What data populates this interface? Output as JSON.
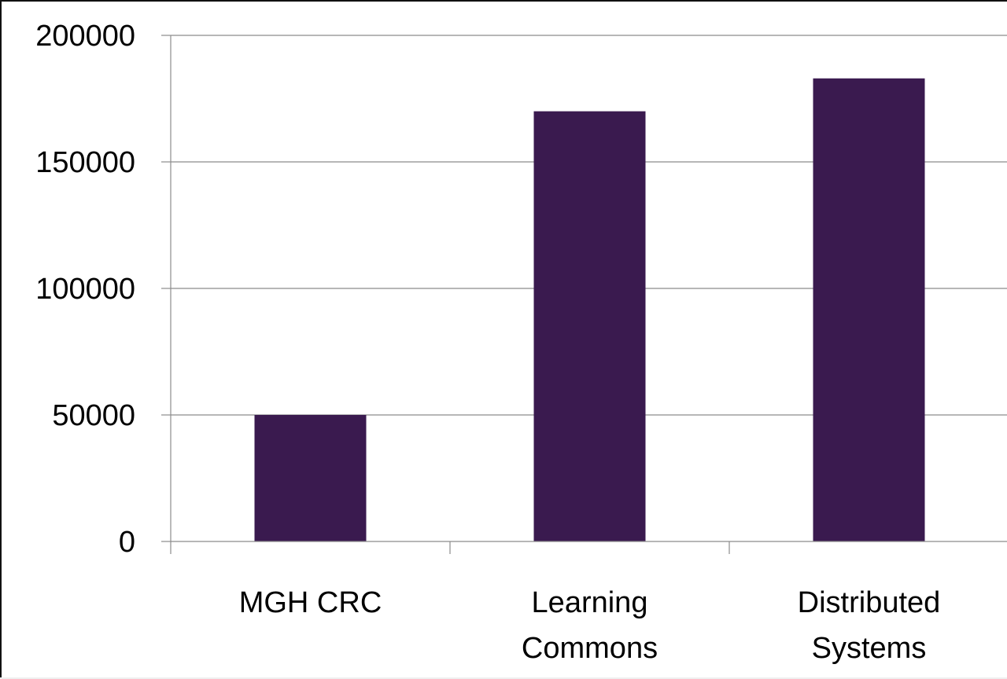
{
  "chart_data": {
    "type": "bar",
    "categories": [
      "MGH CRC",
      "Learning Commons",
      "Distributed Systems"
    ],
    "category_lines": [
      [
        "MGH CRC"
      ],
      [
        "Learning",
        "Commons"
      ],
      [
        "Distributed",
        "Systems"
      ]
    ],
    "values": [
      50000,
      170000,
      183000
    ],
    "ylim": [
      0,
      200000
    ],
    "yticks": [
      0,
      50000,
      100000,
      150000,
      200000
    ],
    "ytick_labels": [
      "0",
      "50000",
      "100000",
      "150000",
      "200000"
    ],
    "grid": true,
    "legend": "none",
    "bar_color": "#3a1a4f",
    "grid_color": "#8c8c8c",
    "title": "",
    "xlabel": "",
    "ylabel": ""
  }
}
